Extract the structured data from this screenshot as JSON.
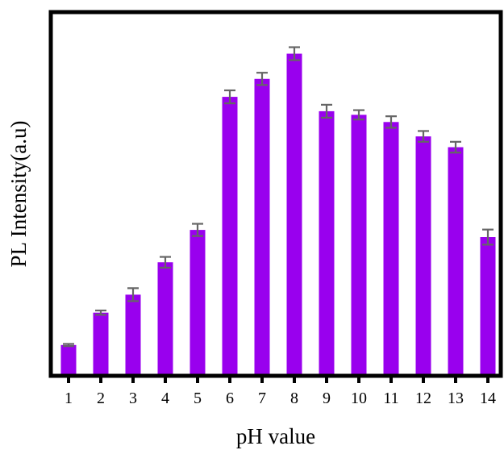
{
  "chart_data": {
    "type": "bar",
    "xlabel": "pH value",
    "ylabel": "PL Intensity(a.u)",
    "categories": [
      "1",
      "2",
      "3",
      "4",
      "5",
      "6",
      "7",
      "8",
      "9",
      "10",
      "11",
      "12",
      "13",
      "14"
    ],
    "values": [
      8,
      17,
      22,
      31,
      40,
      77,
      82,
      89,
      73,
      72,
      70,
      66,
      63,
      38
    ],
    "errors": [
      0.3,
      0.6,
      1.8,
      1.5,
      1.7,
      1.8,
      1.7,
      1.8,
      1.8,
      1.3,
      1.6,
      1.5,
      1.5,
      2.1
    ],
    "ylim": [
      0,
      100
    ],
    "y_ticks_shown": false,
    "grid": false,
    "legend": "none",
    "bar_color": "#9900ee",
    "error_bar_color": "#666666",
    "axis_color": "#000000"
  }
}
